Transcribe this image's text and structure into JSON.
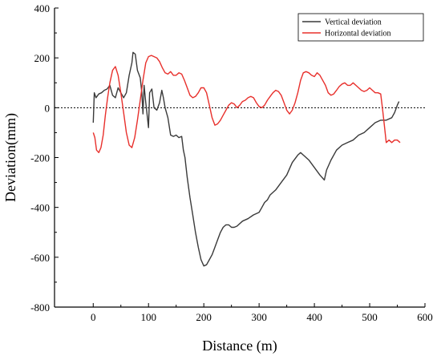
{
  "chart_data": {
    "type": "line",
    "title": "",
    "xlabel": "Distance (m)",
    "ylabel": "Deviation(mm)",
    "xlim": [
      -70,
      600
    ],
    "ylim": [
      -800,
      400
    ],
    "xticks": [
      0,
      100,
      200,
      300,
      400,
      500,
      600
    ],
    "yticks": [
      -800,
      -600,
      -400,
      -200,
      0,
      200,
      400
    ],
    "reference_line": {
      "y": 0,
      "style": "dotted"
    },
    "legend_position": "top-right",
    "series": [
      {
        "name": "Vertical deviation",
        "color": "#3a3a3a",
        "points": [
          [
            0,
            -60
          ],
          [
            2,
            60
          ],
          [
            5,
            40
          ],
          [
            10,
            55
          ],
          [
            15,
            60
          ],
          [
            20,
            70
          ],
          [
            25,
            75
          ],
          [
            30,
            90
          ],
          [
            35,
            50
          ],
          [
            40,
            40
          ],
          [
            45,
            80
          ],
          [
            50,
            60
          ],
          [
            55,
            40
          ],
          [
            60,
            60
          ],
          [
            65,
            130
          ],
          [
            70,
            180
          ],
          [
            72,
            222
          ],
          [
            76,
            215
          ],
          [
            80,
            150
          ],
          [
            85,
            120
          ],
          [
            88,
            60
          ],
          [
            90,
            -25
          ],
          [
            92,
            90
          ],
          [
            95,
            20
          ],
          [
            97,
            -20
          ],
          [
            100,
            -80
          ],
          [
            102,
            60
          ],
          [
            106,
            75
          ],
          [
            110,
            0
          ],
          [
            115,
            -10
          ],
          [
            120,
            20
          ],
          [
            124,
            70
          ],
          [
            127,
            40
          ],
          [
            130,
            0
          ],
          [
            135,
            -40
          ],
          [
            140,
            -110
          ],
          [
            145,
            -115
          ],
          [
            150,
            -110
          ],
          [
            155,
            -120
          ],
          [
            160,
            -115
          ],
          [
            163,
            -170
          ],
          [
            166,
            -200
          ],
          [
            170,
            -280
          ],
          [
            175,
            -360
          ],
          [
            180,
            -430
          ],
          [
            185,
            -500
          ],
          [
            190,
            -560
          ],
          [
            195,
            -610
          ],
          [
            200,
            -635
          ],
          [
            205,
            -630
          ],
          [
            210,
            -610
          ],
          [
            215,
            -590
          ],
          [
            220,
            -560
          ],
          [
            225,
            -530
          ],
          [
            230,
            -500
          ],
          [
            235,
            -480
          ],
          [
            240,
            -470
          ],
          [
            245,
            -470
          ],
          [
            250,
            -480
          ],
          [
            255,
            -480
          ],
          [
            260,
            -475
          ],
          [
            270,
            -455
          ],
          [
            280,
            -445
          ],
          [
            290,
            -430
          ],
          [
            300,
            -420
          ],
          [
            305,
            -400
          ],
          [
            310,
            -380
          ],
          [
            315,
            -370
          ],
          [
            320,
            -350
          ],
          [
            330,
            -330
          ],
          [
            340,
            -300
          ],
          [
            350,
            -270
          ],
          [
            360,
            -220
          ],
          [
            370,
            -190
          ],
          [
            375,
            -180
          ],
          [
            380,
            -190
          ],
          [
            390,
            -210
          ],
          [
            400,
            -240
          ],
          [
            410,
            -270
          ],
          [
            418,
            -290
          ],
          [
            422,
            -250
          ],
          [
            430,
            -210
          ],
          [
            440,
            -170
          ],
          [
            450,
            -150
          ],
          [
            460,
            -140
          ],
          [
            470,
            -130
          ],
          [
            480,
            -110
          ],
          [
            490,
            -100
          ],
          [
            500,
            -80
          ],
          [
            510,
            -60
          ],
          [
            520,
            -50
          ],
          [
            530,
            -50
          ],
          [
            540,
            -40
          ],
          [
            545,
            -20
          ],
          [
            550,
            10
          ],
          [
            553,
            25
          ]
        ]
      },
      {
        "name": "Horizontal deviation",
        "color": "#e8302c",
        "points": [
          [
            0,
            -100
          ],
          [
            3,
            -120
          ],
          [
            6,
            -170
          ],
          [
            10,
            -180
          ],
          [
            14,
            -160
          ],
          [
            18,
            -110
          ],
          [
            22,
            -30
          ],
          [
            26,
            40
          ],
          [
            30,
            100
          ],
          [
            35,
            150
          ],
          [
            40,
            165
          ],
          [
            45,
            130
          ],
          [
            50,
            60
          ],
          [
            55,
            -20
          ],
          [
            60,
            -100
          ],
          [
            65,
            -150
          ],
          [
            70,
            -160
          ],
          [
            75,
            -120
          ],
          [
            80,
            -50
          ],
          [
            85,
            30
          ],
          [
            90,
            110
          ],
          [
            95,
            180
          ],
          [
            100,
            205
          ],
          [
            105,
            210
          ],
          [
            110,
            205
          ],
          [
            115,
            200
          ],
          [
            120,
            185
          ],
          [
            125,
            160
          ],
          [
            130,
            140
          ],
          [
            135,
            135
          ],
          [
            140,
            145
          ],
          [
            145,
            130
          ],
          [
            150,
            130
          ],
          [
            155,
            140
          ],
          [
            160,
            135
          ],
          [
            165,
            110
          ],
          [
            170,
            80
          ],
          [
            175,
            50
          ],
          [
            180,
            40
          ],
          [
            185,
            45
          ],
          [
            190,
            60
          ],
          [
            195,
            80
          ],
          [
            200,
            80
          ],
          [
            205,
            60
          ],
          [
            210,
            10
          ],
          [
            215,
            -40
          ],
          [
            220,
            -70
          ],
          [
            225,
            -65
          ],
          [
            230,
            -50
          ],
          [
            235,
            -30
          ],
          [
            240,
            -10
          ],
          [
            245,
            10
          ],
          [
            250,
            20
          ],
          [
            255,
            15
          ],
          [
            260,
            0
          ],
          [
            265,
            10
          ],
          [
            270,
            25
          ],
          [
            275,
            30
          ],
          [
            280,
            40
          ],
          [
            285,
            45
          ],
          [
            290,
            40
          ],
          [
            295,
            20
          ],
          [
            300,
            5
          ],
          [
            305,
            0
          ],
          [
            310,
            10
          ],
          [
            315,
            30
          ],
          [
            320,
            45
          ],
          [
            325,
            60
          ],
          [
            330,
            70
          ],
          [
            335,
            65
          ],
          [
            340,
            50
          ],
          [
            345,
            20
          ],
          [
            350,
            -10
          ],
          [
            355,
            -25
          ],
          [
            360,
            -10
          ],
          [
            365,
            20
          ],
          [
            370,
            60
          ],
          [
            375,
            110
          ],
          [
            380,
            140
          ],
          [
            385,
            145
          ],
          [
            390,
            140
          ],
          [
            395,
            130
          ],
          [
            400,
            125
          ],
          [
            405,
            140
          ],
          [
            410,
            130
          ],
          [
            415,
            110
          ],
          [
            420,
            90
          ],
          [
            425,
            60
          ],
          [
            430,
            50
          ],
          [
            435,
            55
          ],
          [
            440,
            70
          ],
          [
            445,
            85
          ],
          [
            450,
            95
          ],
          [
            455,
            100
          ],
          [
            460,
            90
          ],
          [
            465,
            90
          ],
          [
            470,
            100
          ],
          [
            475,
            90
          ],
          [
            480,
            80
          ],
          [
            485,
            70
          ],
          [
            490,
            65
          ],
          [
            495,
            70
          ],
          [
            500,
            80
          ],
          [
            505,
            70
          ],
          [
            510,
            60
          ],
          [
            515,
            60
          ],
          [
            520,
            55
          ],
          [
            523,
            0
          ],
          [
            526,
            -60
          ],
          [
            530,
            -140
          ],
          [
            535,
            -130
          ],
          [
            540,
            -140
          ],
          [
            545,
            -130
          ],
          [
            550,
            -130
          ],
          [
            555,
            -140
          ]
        ]
      }
    ]
  }
}
